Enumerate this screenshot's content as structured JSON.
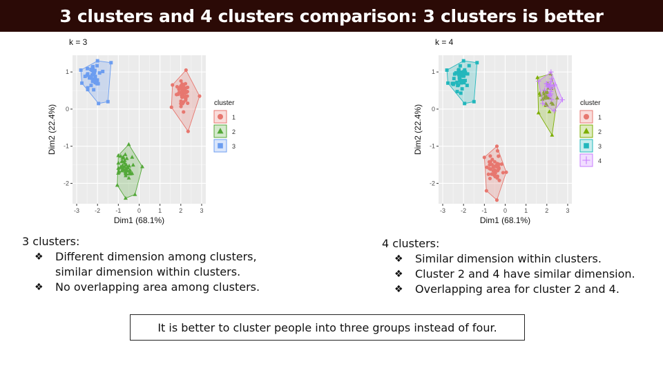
{
  "slide": {
    "title": "3 clusters and 4 clusters comparison: 3 clusters is better",
    "conclusion": "It is better to cluster people into three groups instead of four."
  },
  "left_panel": {
    "heading": "3 clusters:",
    "bullets": [
      {
        "symbol": "❖",
        "text": "Different dimension among clusters, similar dimension within clusters."
      },
      {
        "symbol": "❖",
        "text": "No overlapping area among clusters."
      }
    ]
  },
  "right_panel": {
    "heading": "4 clusters:",
    "bullets": [
      {
        "symbol": "❖",
        "text": "Similar dimension within clusters."
      },
      {
        "symbol": "❖",
        "text": "Cluster 2 and 4 have similar dimension."
      },
      {
        "symbol": "❖",
        "text": "Overlapping area for cluster 2 and 4."
      }
    ]
  },
  "chart_data": [
    {
      "type": "scatter",
      "title": "k = 3",
      "xlabel": "Dim1 (68.1%)",
      "ylabel": "Dim2 (22.4%)",
      "xlim": [
        -3.2,
        3.2
      ],
      "ylim": [
        -2.55,
        1.45
      ],
      "xticks": [
        -3,
        -2,
        -1,
        0,
        1,
        2,
        3
      ],
      "yticks": [
        -2,
        -1,
        0,
        1
      ],
      "grid": true,
      "legend_title": "cluster",
      "legend_position": "right",
      "series": [
        {
          "name": "1",
          "color": "#E7776F",
          "shape": "circle",
          "n": 50,
          "center": [
            2.1,
            0.4
          ],
          "spread": [
            0.35,
            0.35
          ],
          "hull": [
            [
              1.6,
              0.65
            ],
            [
              2.25,
              1.05
            ],
            [
              2.9,
              0.35
            ],
            [
              2.35,
              -0.6
            ],
            [
              1.55,
              0.05
            ]
          ]
        },
        {
          "name": "2",
          "color": "#53A838",
          "shape": "triangle",
          "n": 50,
          "center": [
            -0.6,
            -1.6
          ],
          "spread": [
            0.4,
            0.3
          ],
          "hull": [
            [
              -1.0,
              -1.25
            ],
            [
              -0.5,
              -0.95
            ],
            [
              0.15,
              -1.55
            ],
            [
              -0.2,
              -2.3
            ],
            [
              -0.65,
              -2.4
            ],
            [
              -1.05,
              -2.05
            ]
          ]
        },
        {
          "name": "3",
          "color": "#6C9DF0",
          "shape": "square",
          "n": 50,
          "center": [
            -2.2,
            0.85
          ],
          "spread": [
            0.35,
            0.3
          ],
          "hull": [
            [
              -2.8,
              1.05
            ],
            [
              -2.0,
              1.3
            ],
            [
              -1.35,
              1.25
            ],
            [
              -1.5,
              0.2
            ],
            [
              -1.95,
              0.15
            ],
            [
              -2.75,
              0.7
            ]
          ]
        }
      ]
    },
    {
      "type": "scatter",
      "title": "k = 4",
      "xlabel": "Dim1 (68.1%)",
      "ylabel": "Dim2 (22.4%)",
      "xlim": [
        -3.2,
        3.2
      ],
      "ylim": [
        -2.55,
        1.45
      ],
      "xticks": [
        -3,
        -2,
        -1,
        0,
        1,
        2,
        3
      ],
      "yticks": [
        -2,
        -1,
        0,
        1
      ],
      "grid": true,
      "legend_title": "cluster",
      "legend_position": "right",
      "series": [
        {
          "name": "1",
          "color": "#E7776F",
          "shape": "circle",
          "n": 45,
          "center": [
            -0.5,
            -1.6
          ],
          "spread": [
            0.35,
            0.35
          ],
          "hull": [
            [
              -1.0,
              -1.3
            ],
            [
              -0.4,
              -1.0
            ],
            [
              0.05,
              -1.7
            ],
            [
              -0.4,
              -2.45
            ],
            [
              -0.9,
              -2.2
            ]
          ]
        },
        {
          "name": "2",
          "color": "#7CAE00",
          "shape": "triangle",
          "n": 30,
          "center": [
            2.0,
            0.3
          ],
          "spread": [
            0.3,
            0.35
          ],
          "hull": [
            [
              1.55,
              0.85
            ],
            [
              2.2,
              0.95
            ],
            [
              2.5,
              0.3
            ],
            [
              2.25,
              -0.7
            ],
            [
              1.6,
              -0.1
            ]
          ]
        },
        {
          "name": "3",
          "color": "#22B7BC",
          "shape": "square",
          "n": 50,
          "center": [
            -2.2,
            0.85
          ],
          "spread": [
            0.35,
            0.3
          ],
          "hull": [
            [
              -2.8,
              1.05
            ],
            [
              -2.0,
              1.3
            ],
            [
              -1.35,
              1.25
            ],
            [
              -1.5,
              0.2
            ],
            [
              -1.95,
              0.15
            ],
            [
              -2.75,
              0.7
            ]
          ]
        },
        {
          "name": "4",
          "color": "#C77CFF",
          "shape": "plus",
          "n": 25,
          "center": [
            2.15,
            0.55
          ],
          "spread": [
            0.25,
            0.25
          ],
          "hull": [
            [
              1.6,
              0.75
            ],
            [
              2.2,
              1.0
            ],
            [
              2.75,
              0.25
            ],
            [
              2.35,
              -0.05
            ],
            [
              1.8,
              0.15
            ]
          ]
        }
      ]
    }
  ]
}
